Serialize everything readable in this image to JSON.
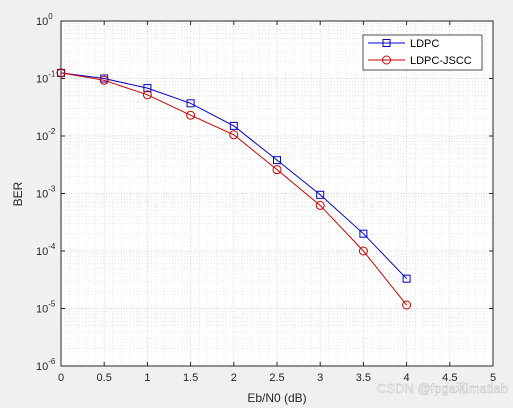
{
  "chart_data": {
    "type": "line",
    "title": "",
    "xlabel": "Eb/N0 (dB)",
    "ylabel": "BER",
    "yscale": "log",
    "xlim": [
      0,
      5
    ],
    "ylim": [
      1e-06,
      1
    ],
    "x_ticks": [
      0,
      0.5,
      1,
      1.5,
      2,
      2.5,
      3,
      3.5,
      4,
      4.5,
      5
    ],
    "x_tick_labels": [
      "0",
      "0.5",
      "1",
      "1.5",
      "2",
      "2.5",
      "3",
      "3.5",
      "4",
      "4.5",
      "5"
    ],
    "y_tick_labels": [
      {
        "base": "10",
        "exp": "0"
      },
      {
        "base": "10",
        "exp": "-1"
      },
      {
        "base": "10",
        "exp": "-2"
      },
      {
        "base": "10",
        "exp": "-3"
      },
      {
        "base": "10",
        "exp": "-4"
      },
      {
        "base": "10",
        "exp": "-5"
      },
      {
        "base": "10",
        "exp": "-6"
      }
    ],
    "grid": true,
    "minor_grid": true,
    "legend_position": "top-right",
    "x": [
      0,
      0.5,
      1,
      1.5,
      2,
      2.5,
      3,
      3.5,
      4
    ],
    "series": [
      {
        "name": "LDPC",
        "color": "#0000cc",
        "marker": "square",
        "x": [
          0,
          0.5,
          1,
          1.5,
          2,
          2.5,
          3,
          3.5,
          4
        ],
        "values": [
          0.125,
          0.1,
          0.068,
          0.037,
          0.015,
          0.0038,
          0.00095,
          0.0002,
          3.3e-05
        ]
      },
      {
        "name": "LDPC-JSCC",
        "color": "#cc0000",
        "marker": "circle",
        "x": [
          0,
          0.5,
          1,
          1.5,
          2,
          2.5,
          3,
          3.5,
          4
        ],
        "values": [
          0.125,
          0.093,
          0.052,
          0.023,
          0.0105,
          0.0026,
          0.00062,
          0.0001,
          1.15e-05
        ]
      }
    ]
  },
  "watermark": "CSDN @fpga和matlab"
}
